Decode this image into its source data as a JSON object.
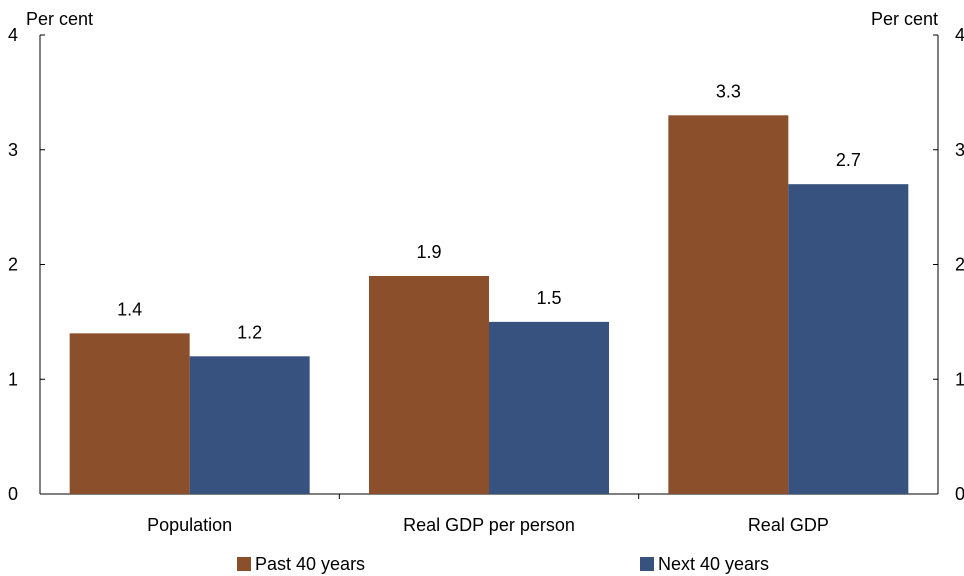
{
  "chart_data": {
    "type": "bar",
    "title": "",
    "ylabel_left": "Per cent",
    "ylabel_right": "Per cent",
    "ylim": [
      0,
      4
    ],
    "yticks": [
      "0",
      "1",
      "2",
      "3",
      "4"
    ],
    "categories": [
      "Population",
      "Real GDP per person",
      "Real GDP"
    ],
    "series": [
      {
        "name": "Past 40 years",
        "values": [
          1.4,
          1.9,
          3.3
        ],
        "labels": [
          "1.4",
          "1.9",
          "3.3"
        ],
        "color": "#8B4F2B"
      },
      {
        "name": "Next 40 years",
        "values": [
          1.2,
          1.5,
          2.7
        ],
        "labels": [
          "1.2",
          "1.5",
          "2.7"
        ],
        "color": "#37527F"
      }
    ],
    "grid": false,
    "legend_position": "bottom"
  }
}
